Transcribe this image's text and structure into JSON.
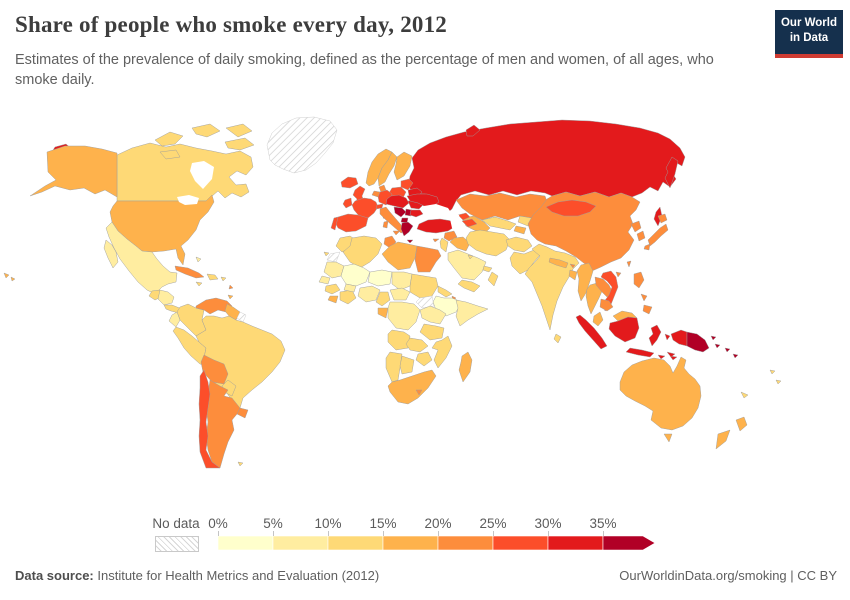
{
  "header": {
    "title": "Share of people who smoke every day, 2012",
    "subtitle": "Estimates of the prevalence of daily smoking, defined as the percentage of men and women, of all ages, who smoke daily.",
    "logo_line1": "Our World",
    "logo_line2": "in Data",
    "logo_bg": "#15304d",
    "logo_stripe": "#cf3b32"
  },
  "footer": {
    "source_label": "Data source:",
    "source_value": " Institute for Health Metrics and Evaluation (2012)",
    "right_text": "OurWorldinData.org/smoking | CC BY"
  },
  "chart_data": {
    "type": "heatmap",
    "subtype": "choropleth-world-map",
    "title": "Share of people who smoke every day, 2012",
    "unit": "%",
    "year": 2012,
    "legend": {
      "no_data_label": "No data",
      "tick_labels": [
        "0%",
        "5%",
        "10%",
        "15%",
        "20%",
        "25%",
        "30%",
        "35%"
      ],
      "bin_ranges": [
        "0-5%",
        "5-10%",
        "10-15%",
        "15-20%",
        "20-25%",
        "25-30%",
        "30-35%",
        ">35%"
      ],
      "bin_colors": [
        "#FFFFCC",
        "#FFEDA0",
        "#FED976",
        "#FEB24C",
        "#FD8D3C",
        "#FC4E2A",
        "#E31A1C",
        "#B10026"
      ]
    },
    "border_color": "#9d9d9d",
    "no_data_regions": [
      "greenland",
      "french-guiana",
      "western-sahara",
      "south-sudan"
    ],
    "regions": {
      "greenland": "no-data",
      "russia": "#E31A1C",
      "canada": "#FED976",
      "usa": "#FEB24C",
      "mexico": "#FFEDA0",
      "guatemala": "#FED976",
      "honduras-nicaragua": "#FFEDA0",
      "costa-rica-panama": "#FED976",
      "cuba": "#FD8D3C",
      "jamaica": "#FED976",
      "hispaniola": "#FED976",
      "puerto-rico": "#FED976",
      "bahamas": "#FFEDA0",
      "lesser-antilles": "#FD8D3C",
      "trinidad": "#FEB24C",
      "colombia": "#FED976",
      "venezuela": "#FD8D3C",
      "guyana-suriname": "#FEB24C",
      "french-guiana": "no-data",
      "ecuador": "#FFEDA0",
      "peru": "#FED976",
      "brazil": "#FED976",
      "bolivia": "#FD8D3C",
      "paraguay": "#FED976",
      "uruguay": "#FD8D3C",
      "chile": "#FC4E2A",
      "argentina": "#FD8D3C",
      "falkland-islands": "#FED976",
      "iceland": "#FC4E2A",
      "norway": "#FEB24C",
      "sweden": "#FEB24C",
      "finland": "#FEB24C",
      "denmark": "#FD8D3C",
      "uk": "#FC4E2A",
      "ireland": "#FC4E2A",
      "baltic-states": "#FC4E2A",
      "belarus": "#E31A1C",
      "poland": "#FC4E2A",
      "germany": "#FC4E2A",
      "benelux": "#FD8D3C",
      "france": "#FC4E2A",
      "spain": "#FC4E2A",
      "portugal": "#FC4E2A",
      "switzerland": "#FC4E2A",
      "austria-hungary": "#E31A1C",
      "italy": "#FD8D3C",
      "croatia-bosnia": "#B10026",
      "serbia": "#B10026",
      "albania-macedonia": "#B10026",
      "greece": "#B10026",
      "romania": "#E31A1C",
      "bulgaria": "#E31A1C",
      "moldova": "#FC4E2A",
      "ukraine": "#E31A1C",
      "turkey": "#E31A1C",
      "cyprus": "#FD8D3C",
      "kazakhstan": "#FD8D3C",
      "uzbekistan": "#FED976",
      "turkmenistan": "#FEB24C",
      "kyrgyzstan": "#FED976",
      "tajikistan": "#FEB24C",
      "georgia": "#FC4E2A",
      "armenia-azerbaijan": "#FC4E2A",
      "syria": "#FD8D3C",
      "lebanon-israel-jordan": "#FED976",
      "iraq": "#FEB24C",
      "iran": "#FED976",
      "saudi-arabia": "#FFEDA0",
      "kuwait": "#FED976",
      "uae-qatar": "#FED976",
      "oman": "#FED976",
      "yemen": "#FED976",
      "afghanistan": "#FED976",
      "pakistan": "#FED976",
      "india": "#FED976",
      "nepal": "#FEB24C",
      "bhutan": "#FD8D3C",
      "bangladesh": "#FEB24C",
      "sri-lanka": "#FED976",
      "myanmar": "#FEB24C",
      "thailand": "#FEB24C",
      "laos": "#FD8D3C",
      "vietnam": "#FC4E2A",
      "cambodia": "#FD8D3C",
      "malaysia": "#FEB24C",
      "china": "#FD8D3C",
      "mongolia": "#FC4E2A",
      "north-korea": "#FD8D3C",
      "south-korea": "#FD8D3C",
      "japan": "#FD8D3C",
      "taiwan": "#FD8D3C",
      "philippines": "#FD8D3C",
      "indonesia": "#E31A1C",
      "papua-new-guinea": "#B10026",
      "solomon-islands": "#B10026",
      "australia": "#FEB24C",
      "new-zealand": "#FEB24C",
      "fiji": "#FED976",
      "new-caledonia": "#FED976",
      "morocco": "#FED976",
      "western-sahara": "no-data",
      "algeria": "#FED976",
      "tunisia": "#FD8D3C",
      "libya": "#FEB24C",
      "egypt": "#FD8D3C",
      "mauritania": "#FFEDA0",
      "mali": "#FFFFCC",
      "niger": "#FFFFCC",
      "chad": "#FFEDA0",
      "sudan": "#FED976",
      "south-sudan": "no-data",
      "eritrea": "#FED976",
      "djibouti": "#FD8D3C",
      "ethiopia": "#FFFFCC",
      "somalia": "#FFEDA0",
      "senegal": "#FFEDA0",
      "guinea": "#FED976",
      "sierra-leone-liberia": "#FEB24C",
      "cote-divoire-ghana": "#FED976",
      "burkina-faso": "#FFEDA0",
      "nigeria": "#FFEDA0",
      "cameroon": "#FED976",
      "central-african-republic": "#FFEDA0",
      "gabon-congo": "#FEB24C",
      "drc": "#FFEDA0",
      "uganda-kenya": "#FFEDA0",
      "tanzania": "#FED976",
      "angola": "#FED976",
      "zambia": "#FED976",
      "mozambique": "#FED976",
      "zimbabwe": "#FED976",
      "namibia": "#FED976",
      "botswana": "#FED976",
      "south-africa": "#FEB24C",
      "lesotho": "#FD8D3C",
      "madagascar": "#FEB24C",
      "canary-islands": "#FED976"
    }
  }
}
